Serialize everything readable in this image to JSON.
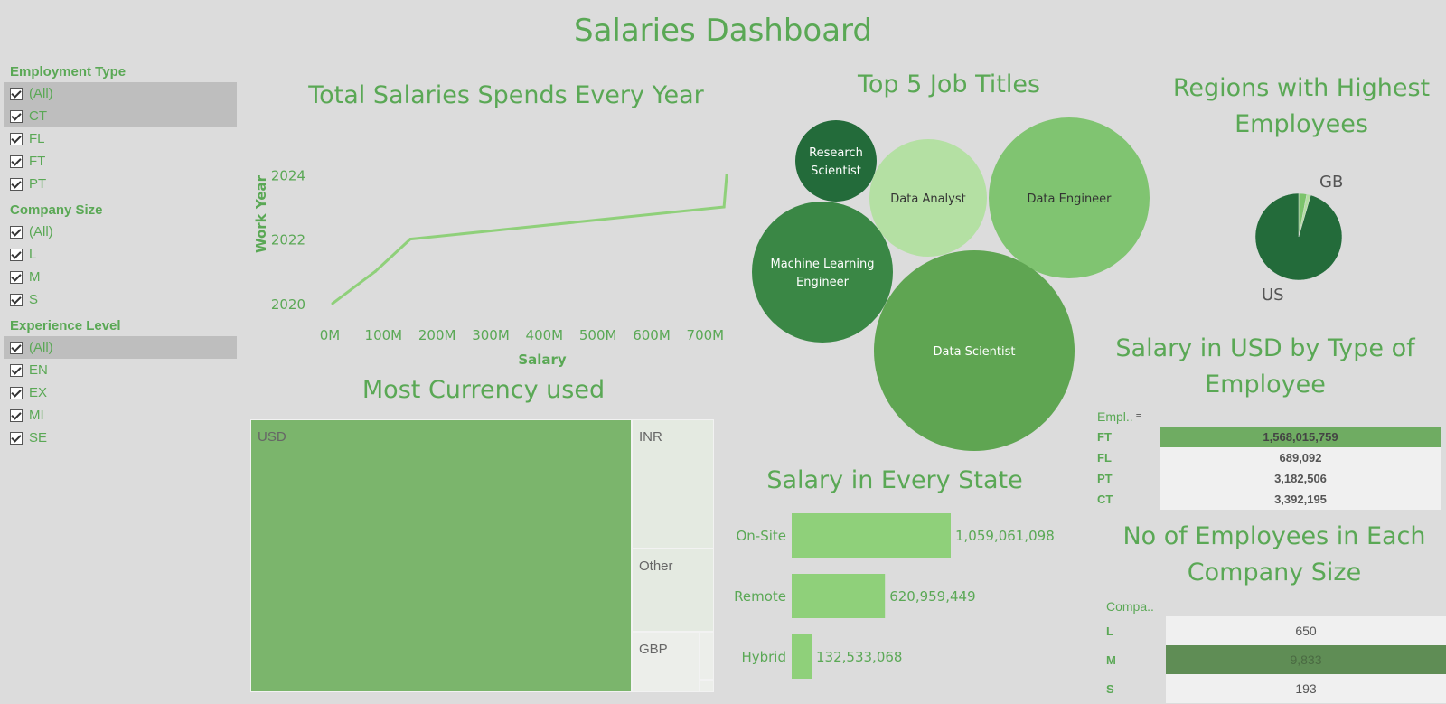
{
  "dashboard": {
    "title": "Salaries Dashboard"
  },
  "filters": [
    {
      "title": "Employment Type",
      "items": [
        {
          "label": "(All)",
          "selected": true
        },
        {
          "label": "CT",
          "selected": true
        },
        {
          "label": "FL",
          "selected": false
        },
        {
          "label": "FT",
          "selected": false
        },
        {
          "label": "PT",
          "selected": false
        }
      ]
    },
    {
      "title": "Company Size",
      "items": [
        {
          "label": "(All)",
          "selected": false
        },
        {
          "label": "L",
          "selected": false
        },
        {
          "label": "M",
          "selected": false
        },
        {
          "label": "S",
          "selected": false
        }
      ]
    },
    {
      "title": "Experience Level",
      "items": [
        {
          "label": "(All)",
          "selected": true
        },
        {
          "label": "EN",
          "selected": false
        },
        {
          "label": "EX",
          "selected": false
        },
        {
          "label": "MI",
          "selected": false
        },
        {
          "label": "SE",
          "selected": false
        }
      ]
    }
  ],
  "colors": {
    "accent": "#5aa855",
    "line": "#8fd07a",
    "bar": "#8fd07a",
    "treemap_main": "#7bb56c",
    "treemap_light": "#e4eae1",
    "table_highlight": "#6fac62",
    "table_dark": "#5f8d55"
  },
  "chart_data": [
    {
      "id": "total-salaries",
      "type": "line",
      "title": "Total Salaries Spends Every Year",
      "xlabel": "Salary",
      "ylabel": "Work Year",
      "x_ticks": [
        "0M",
        "100M",
        "200M",
        "300M",
        "400M",
        "500M",
        "600M",
        "700M"
      ],
      "y_ticks": [
        "2020",
        "2022",
        "2024"
      ],
      "xlim": [
        0,
        750
      ],
      "ylim": [
        2019.6,
        2024.8
      ],
      "points": [
        {
          "x": 5,
          "y": 2020
        },
        {
          "x": 85,
          "y": 2021
        },
        {
          "x": 150,
          "y": 2022
        },
        {
          "x": 735,
          "y": 2023
        },
        {
          "x": 740,
          "y": 2024
        }
      ]
    },
    {
      "id": "top-job-titles",
      "type": "bubble",
      "title": "Top 5 Job Titles",
      "items": [
        {
          "label": "Research Scientist",
          "color": "#236b3a",
          "text_color": "#ffffff"
        },
        {
          "label": "Data Analyst",
          "color": "#b4e0a3",
          "text_color": "#333333"
        },
        {
          "label": "Data Engineer",
          "color": "#80c471",
          "text_color": "#333333"
        },
        {
          "label": "Machine Learning Engineer",
          "color": "#3a8745",
          "text_color": "#ffffff"
        },
        {
          "label": "Data Scientist",
          "color": "#5fa552",
          "text_color": "#ffffff"
        }
      ]
    },
    {
      "id": "regions",
      "type": "pie",
      "title": "Regions with Highest Employees",
      "slices": [
        {
          "label": "US",
          "value": 0.955,
          "color": "#236b3a"
        },
        {
          "label": "GB",
          "value": 0.03,
          "color": "#7cc46c"
        },
        {
          "label": "",
          "value": 0.015,
          "color": "#b4e0a3"
        }
      ]
    },
    {
      "id": "currency",
      "type": "treemap",
      "title": "Most Currency used",
      "items": [
        {
          "label": "USD"
        },
        {
          "label": "INR"
        },
        {
          "label": "Other"
        },
        {
          "label": "GBP"
        }
      ]
    },
    {
      "id": "salary-state",
      "type": "bar",
      "title": "Salary in Every State",
      "categories": [
        "On-Site",
        "Remote",
        "Hybrid"
      ],
      "values": [
        1059061098,
        620959449,
        132533068
      ],
      "labels": [
        "1,059,061,098",
        "620,959,449",
        "132,533,068"
      ]
    },
    {
      "id": "salary-type",
      "type": "table",
      "title": "Salary in USD by Type of Employee",
      "header": "Empl..",
      "rows": [
        {
          "label": "FT",
          "value": "1,568,015,759",
          "highlight": true
        },
        {
          "label": "FL",
          "value": "689,092",
          "highlight": false
        },
        {
          "label": "PT",
          "value": "3,182,506",
          "highlight": false
        },
        {
          "label": "CT",
          "value": "3,392,195",
          "highlight": false
        }
      ]
    },
    {
      "id": "company-size",
      "type": "table",
      "title": "No of Employees in Each Company Size",
      "header": "Compa..",
      "rows": [
        {
          "label": "L",
          "value": "650",
          "highlight": false
        },
        {
          "label": "M",
          "value": "9,833",
          "highlight": true
        },
        {
          "label": "S",
          "value": "193",
          "highlight": false
        }
      ]
    }
  ]
}
